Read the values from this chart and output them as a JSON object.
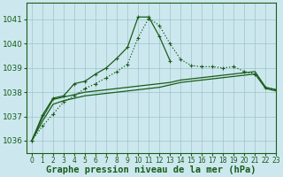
{
  "title": "Graphe pression niveau de la mer (hPa)",
  "background_color": "#cce8ee",
  "grid_color": "#9dc4cc",
  "line_color": "#1a5c1a",
  "xlim": [
    -0.5,
    23
  ],
  "ylim": [
    1035.5,
    1041.7
  ],
  "yticks": [
    1036,
    1037,
    1038,
    1039,
    1040,
    1041
  ],
  "xticks": [
    0,
    1,
    2,
    3,
    4,
    5,
    6,
    7,
    8,
    9,
    10,
    11,
    12,
    13,
    14,
    15,
    16,
    17,
    18,
    19,
    20,
    21,
    22,
    23
  ],
  "series_dotted_marked": [
    1036.0,
    1036.6,
    1037.1,
    1037.6,
    1037.85,
    1038.15,
    1038.35,
    1038.6,
    1038.85,
    1039.15,
    1040.25,
    1041.05,
    1040.75,
    1040.0,
    1039.35,
    1039.1,
    1039.05,
    1039.05,
    1039.0,
    1039.05,
    1038.85,
    1038.75,
    1038.2,
    1038.1
  ],
  "series_solid_marked": [
    1036.0,
    1037.05,
    1037.75,
    1037.85,
    1038.35,
    1038.45,
    1038.75,
    1039.0,
    1039.4,
    1039.85,
    1041.1,
    1041.1,
    1040.3,
    1039.3,
    null,
    null,
    null,
    null,
    null,
    null,
    null,
    null,
    null,
    null
  ],
  "series_flat1": [
    1036.0,
    1036.95,
    1037.7,
    1037.8,
    1037.9,
    1038.0,
    1038.05,
    1038.1,
    1038.15,
    1038.2,
    1038.25,
    1038.3,
    1038.35,
    1038.4,
    1038.5,
    1038.55,
    1038.6,
    1038.65,
    1038.7,
    1038.75,
    1038.8,
    1038.85,
    1038.2,
    1038.1
  ],
  "series_flat2": [
    1036.0,
    1036.8,
    1037.5,
    1037.65,
    1037.75,
    1037.85,
    1037.9,
    1037.95,
    1038.0,
    1038.05,
    1038.1,
    1038.15,
    1038.2,
    1038.3,
    1038.4,
    1038.45,
    1038.5,
    1038.55,
    1038.6,
    1038.65,
    1038.7,
    1038.75,
    1038.15,
    1038.05
  ],
  "xlabel_fontsize": 7.5,
  "ytick_fontsize": 6.5,
  "xtick_fontsize": 5.5
}
